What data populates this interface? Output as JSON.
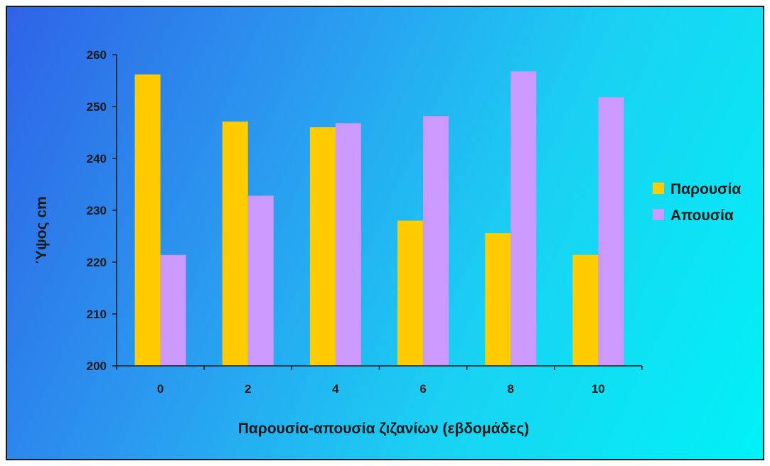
{
  "chart_data": {
    "type": "bar",
    "title": "",
    "xlabel": "Παρουσία-απουσία ζιζανίων (εβδομάδες)",
    "ylabel": "Ύψος cm",
    "categories": [
      "0",
      "2",
      "4",
      "6",
      "8",
      "10"
    ],
    "ylim": [
      200,
      260
    ],
    "yticks": [
      "200",
      "210",
      "220",
      "230",
      "240",
      "250",
      "260"
    ],
    "grid": false,
    "legend_position": "right",
    "series": [
      {
        "name": "Παρουσία",
        "color": "#ffcc00",
        "values": [
          256.2,
          247.1,
          246,
          228,
          225.6,
          221.4
        ]
      },
      {
        "name": "Απουσία",
        "color": "#cc99ff",
        "values": [
          221.4,
          232.8,
          246.8,
          248.2,
          256.8,
          251.8
        ]
      }
    ]
  }
}
